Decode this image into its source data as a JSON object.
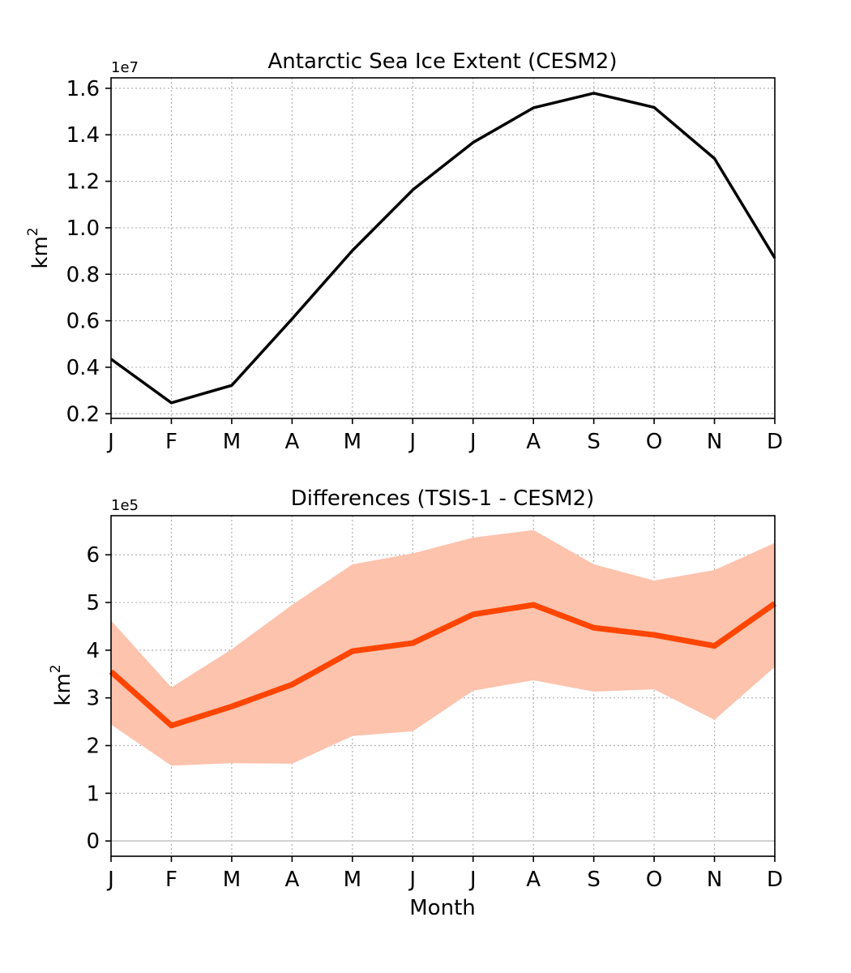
{
  "chart_data": [
    {
      "type": "line",
      "title": "Antarctic Sea Ice Extent (CESM2)",
      "xlabel": "",
      "ylabel": "km",
      "ylabel_sup": "2",
      "offset_text": "1e7",
      "categories": [
        "J",
        "F",
        "M",
        "A",
        "M",
        "J",
        "J",
        "A",
        "S",
        "O",
        "N",
        "D"
      ],
      "yticks": [
        0.2,
        0.4,
        0.6,
        0.8,
        1.0,
        1.2,
        1.4,
        1.6
      ],
      "ytick_labels": [
        "0.2",
        "0.4",
        "0.6",
        "0.8",
        "1.0",
        "1.2",
        "1.4",
        "1.6"
      ],
      "ylim": [
        0.18,
        1.645
      ],
      "grid": true,
      "series": [
        {
          "values": [
            0.435,
            0.247,
            0.322,
            0.608,
            0.902,
            1.163,
            1.367,
            1.516,
            1.579,
            1.518,
            1.298,
            0.87
          ],
          "color": "#000000"
        }
      ]
    },
    {
      "type": "line",
      "title": "Differences (TSIS-1 - CESM2)",
      "xlabel": "Month",
      "ylabel": "km",
      "ylabel_sup": "2",
      "offset_text": "1e5",
      "categories": [
        "J",
        "F",
        "M",
        "A",
        "M",
        "J",
        "J",
        "A",
        "S",
        "O",
        "N",
        "D"
      ],
      "yticks": [
        0,
        1,
        2,
        3,
        4,
        5,
        6
      ],
      "ytick_labels": [
        "0",
        "1",
        "2",
        "3",
        "4",
        "5",
        "6"
      ],
      "ylim": [
        -0.32,
        6.82
      ],
      "grid": true,
      "zero_line": true,
      "series": [
        {
          "values": [
            3.55,
            2.42,
            2.82,
            3.28,
            3.98,
            4.15,
            4.75,
            4.95,
            4.47,
            4.32,
            4.09,
            4.98
          ],
          "color": "#ff4500"
        }
      ],
      "band": {
        "upper": [
          4.62,
          3.22,
          4.02,
          4.95,
          5.8,
          6.03,
          6.36,
          6.52,
          5.8,
          5.46,
          5.68,
          6.25
        ],
        "lower": [
          2.44,
          1.58,
          1.63,
          1.62,
          2.2,
          2.3,
          3.15,
          3.37,
          3.13,
          3.18,
          2.54,
          3.65
        ],
        "color": "#fdc3ad"
      }
    }
  ]
}
